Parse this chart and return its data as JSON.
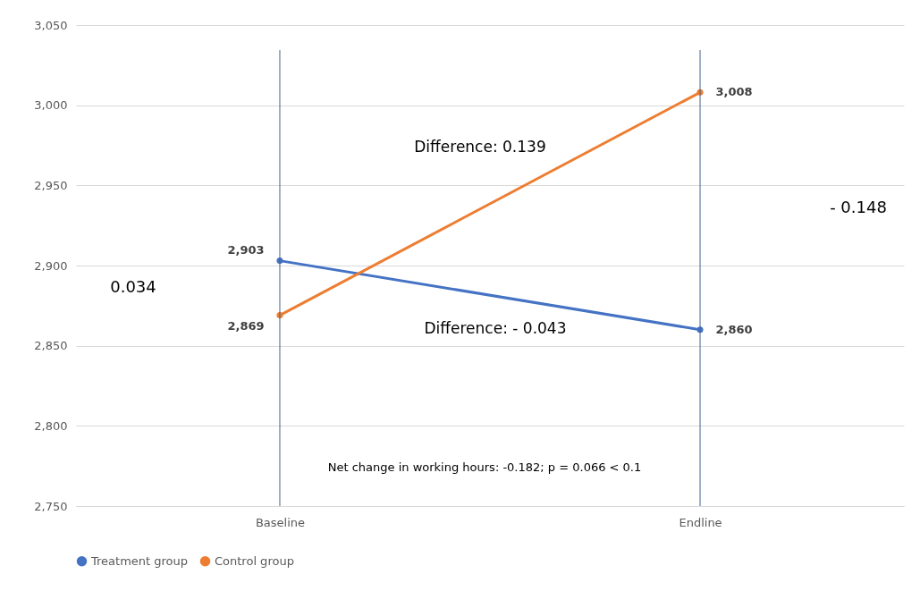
{
  "chart_data": {
    "type": "line",
    "categories": [
      "Baseline",
      "Endline"
    ],
    "series": [
      {
        "name": "Treatment group",
        "color": "#4472c4",
        "values": [
          2903,
          2860
        ],
        "value_labels": [
          "2,903",
          "2,860"
        ]
      },
      {
        "name": "Control group",
        "color": "#ed7d31",
        "values": [
          2869,
          3008
        ],
        "value_labels": [
          "2,869",
          "3,008"
        ]
      }
    ],
    "ylim": [
      2750,
      3050
    ],
    "yticks": [
      {
        "value": 2750,
        "label": "2,750"
      },
      {
        "value": 2800,
        "label": "2,800"
      },
      {
        "value": 2850,
        "label": "2,850"
      },
      {
        "value": 2900,
        "label": "2,900"
      },
      {
        "value": 2950,
        "label": "2,950"
      },
      {
        "value": 3000,
        "label": "3,000"
      },
      {
        "value": 3050,
        "label": "3,050"
      }
    ],
    "ref_lines": [
      {
        "axis": "x",
        "value": "Baseline",
        "color": "#44648c"
      },
      {
        "axis": "x",
        "value": "Endline",
        "color": "#44648c"
      }
    ],
    "annotations": [
      "Difference: 0.139",
      "Difference: - 0.043",
      "0.034",
      "- 0.148",
      "Net change in working hours: -0.182; p = 0.066 < 0.1"
    ],
    "grid": "y",
    "legend": "bottom",
    "marker": "circle",
    "line_style": "solid"
  }
}
